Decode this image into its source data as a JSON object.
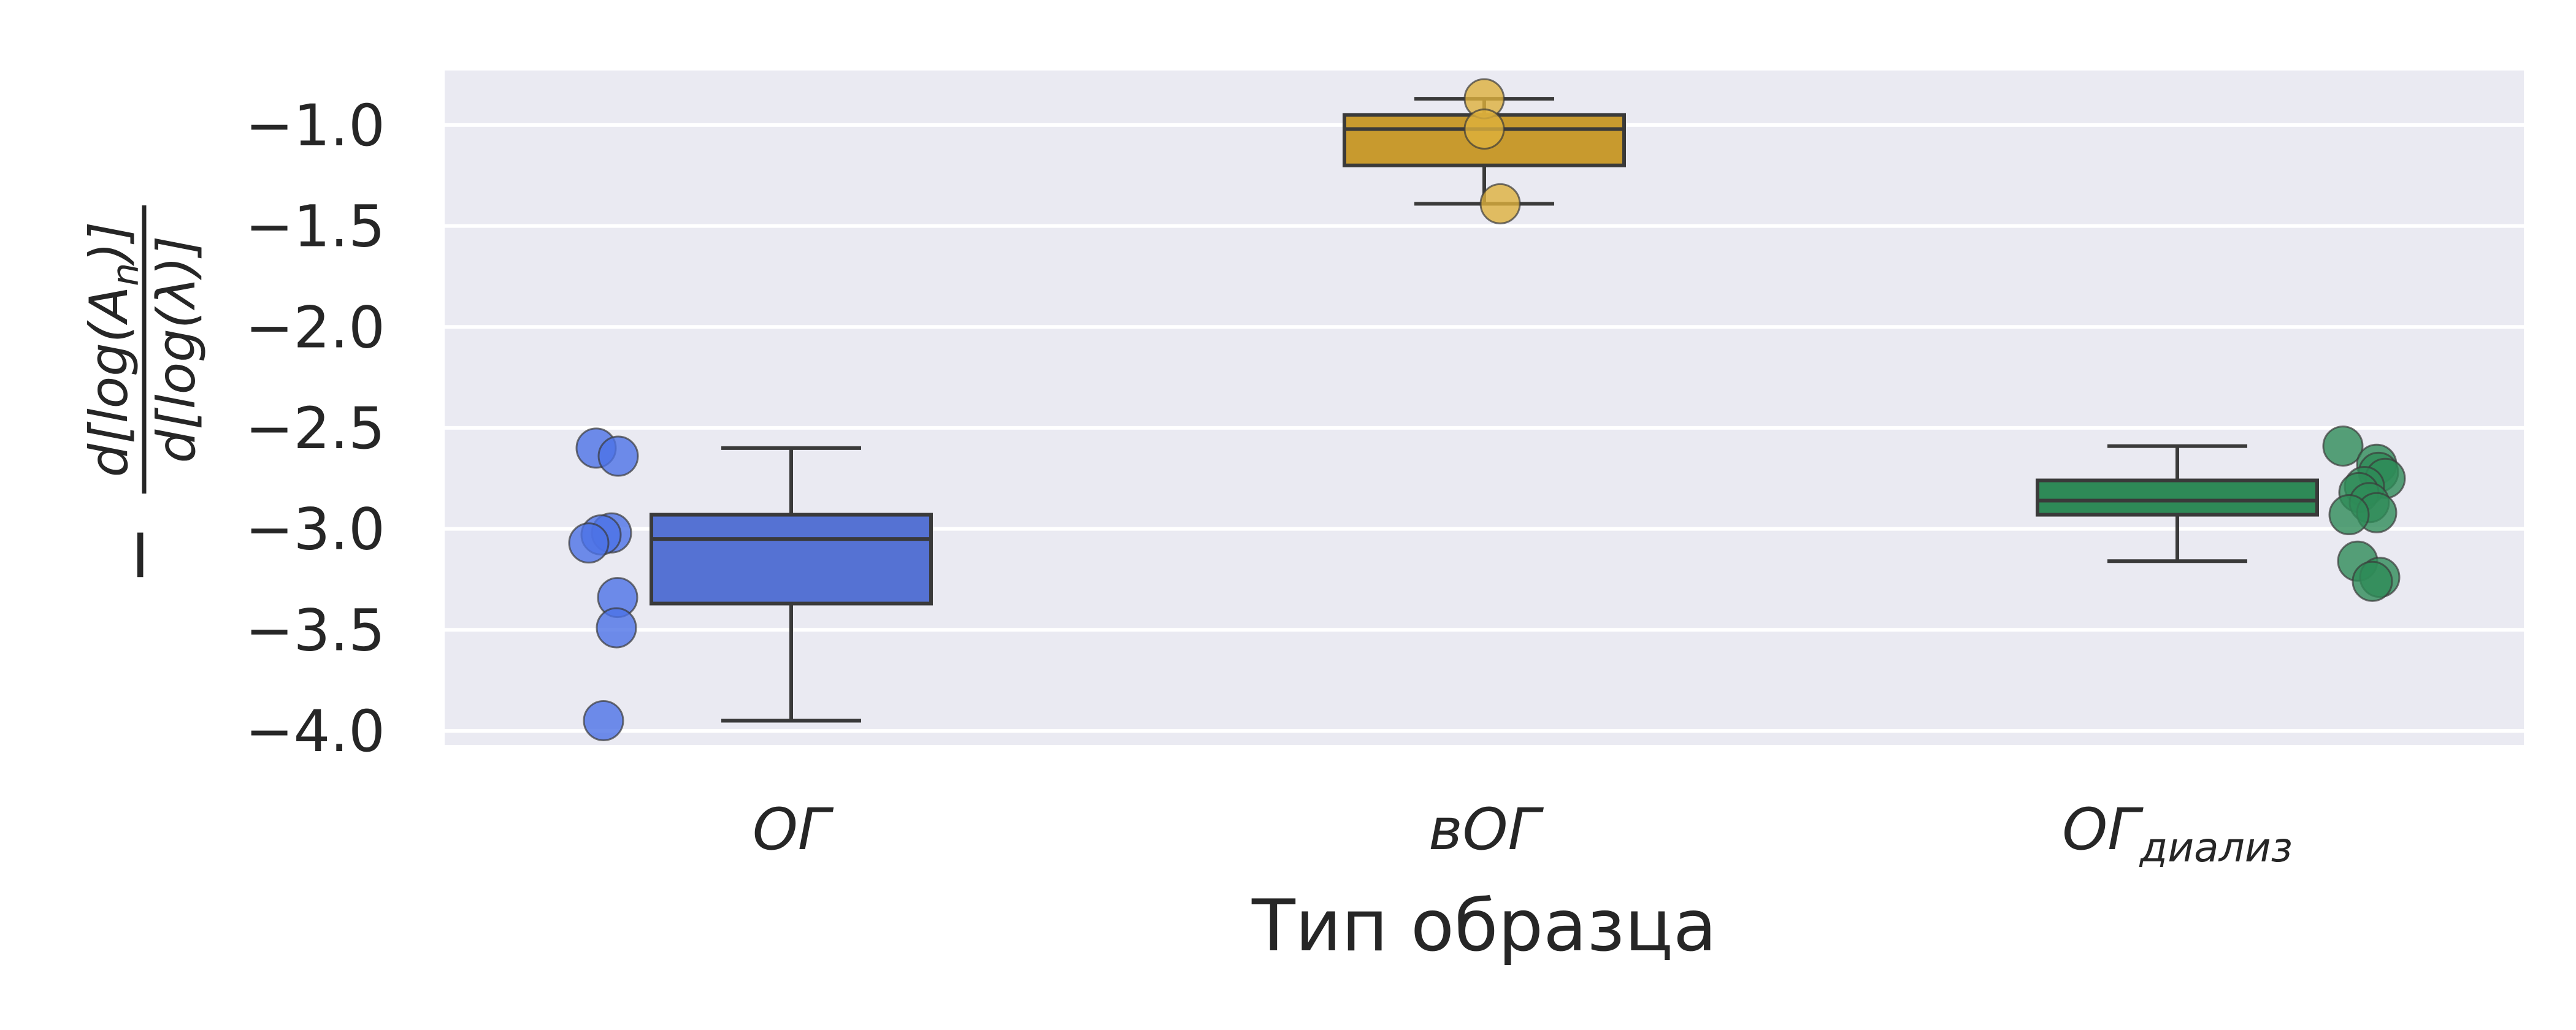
{
  "chart_data": {
    "type": "box",
    "xlabel": "Тип образца",
    "ylabel": {
      "prefix": "−",
      "numerator": "d[log(A",
      "numerator_sub": "n",
      "numerator_tail": ")]",
      "denominator": "d[log(λ)]"
    },
    "ylim": [
      -4.07,
      -0.73
    ],
    "yticks": [
      -1.0,
      -1.5,
      -2.0,
      -2.5,
      -3.0,
      -3.5,
      -4.0
    ],
    "ytick_labels": [
      "−1.0",
      "−1.5",
      "−2.0",
      "−2.5",
      "−3.0",
      "−3.5",
      "−4.0"
    ],
    "grid": true,
    "background": "#eaeaf2",
    "categories": [
      {
        "label": "ОГ",
        "subscript": "",
        "color": "#5572d3",
        "point_color": "#4c72e6",
        "box": {
          "whisker_low": -3.95,
          "q1": -3.37,
          "median": -3.05,
          "q3": -2.93,
          "whisker_high": -2.6
        },
        "points": [
          -2.6,
          -2.64,
          -3.02,
          -3.03,
          -3.07,
          -3.34,
          -3.49,
          -3.95
        ]
      },
      {
        "label": "вОГ",
        "subscript": "",
        "color": "#c89a2e",
        "point_color": "#ddb03c",
        "box": {
          "whisker_low": -1.39,
          "q1": -1.2,
          "median": -1.02,
          "q3": -0.95,
          "whisker_high": -0.87
        },
        "points": [
          -0.87,
          -1.02,
          -1.39
        ]
      },
      {
        "label": "ОГ",
        "subscript": "диализ",
        "color": "#2e8a57",
        "point_color": "#2e8b57",
        "box": {
          "whisker_low": -3.16,
          "q1": -2.93,
          "median": -2.86,
          "q3": -2.76,
          "whisker_high": -2.59
        },
        "points": [
          -2.59,
          -2.68,
          -2.72,
          -2.75,
          -2.79,
          -2.82,
          -2.87,
          -2.92,
          -2.93,
          -3.16,
          -3.24,
          -3.26
        ]
      }
    ]
  }
}
